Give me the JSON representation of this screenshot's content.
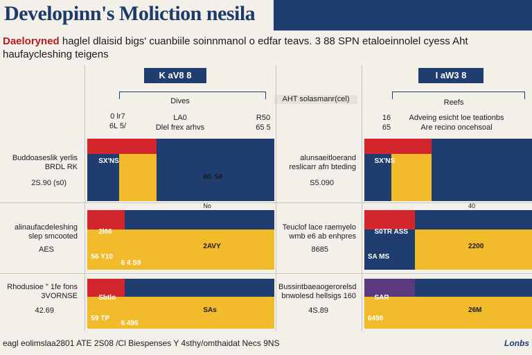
{
  "header": {
    "title": "Developinn's Moliction nesila",
    "subtitle_prefix": "Daeloryned",
    "subtitle": "haglel dlaisid bigs' cuanbiile soinnmanol o edfar teavs. 3 88 SPN etaloeinnolel cyess Aht",
    "subtitle_line2": "haufaycleshing teigens"
  },
  "footer": {
    "source": "eagl eolimslaa2801 ATE 2S08 /Cl Biespenses  Y 4sthy/omthaidat  Necs 9NS",
    "logo": "Lonbs"
  },
  "colors": {
    "navy": "#1f3d6e",
    "yellow": "#f2bb2c",
    "red": "#d2262c",
    "purple": "#5a3a7c",
    "background": "#f3efe9"
  },
  "chart_data": {
    "type": "bar",
    "stacked": true,
    "orientation": "horizontal",
    "title": "Developinn's Moliction nesila",
    "panels": [
      {
        "name": "left",
        "header": "K aV8 8",
        "group_label": "Dives",
        "col_left_top": "0 lr7",
        "col_left_bottom": "6L 5/",
        "col_mid_top": "LA0",
        "col_mid_bottom": "Dlel frex arhvs",
        "col_right_top": "R50",
        "col_right_bottom": "65 5",
        "note": "AHT solasmanr(cel)",
        "rows": [
          {
            "label": "Buddoaseslik yerlis BRDL RK",
            "value_label": "2S.90 (s0)",
            "segments": [
              {
                "color": "navy",
                "value": 17
              },
              {
                "color": "yellow",
                "value": 20
              },
              {
                "color": "navy",
                "value": 63
              }
            ],
            "top_segments": [
              {
                "color": "red",
                "value": 17
              },
              {
                "color": "red",
                "value": 20
              },
              {
                "color": "navy",
                "value": 63
              }
            ],
            "seg_text": [
              "SX'NS",
              "60. 58"
            ],
            "axis_tick": "No"
          },
          {
            "label": "alinaufacdeleshing slep smcooted",
            "value_label": "AES",
            "segments": [
              {
                "color": "red",
                "value": 20
              },
              {
                "color": "navy",
                "value": 80
              }
            ],
            "lower_segments": [
              {
                "color": "yellow",
                "value": 44
              },
              {
                "color": "yellow",
                "value": 56
              }
            ],
            "seg_text": [
              "2l66",
              "2AVY",
              "56 Y10",
              "6 4 S9"
            ]
          },
          {
            "label": "Rhodusioe \" 1fe fons 3VORNSE",
            "value_label": "42.69",
            "segments": [
              {
                "color": "red",
                "value": 20
              },
              {
                "color": "navy",
                "value": 80
              }
            ],
            "lower_segments": [
              {
                "color": "yellow",
                "value": 44
              },
              {
                "color": "yellow",
                "value": 56
              }
            ],
            "seg_text": [
              "Sbtlo",
              "SAs",
              "59 TP",
              "6 495"
            ]
          }
        ]
      },
      {
        "name": "right",
        "header": "I aW3 8",
        "group_label": "Reefs",
        "col_mid_top": "Adveing esicht loe teationbs",
        "col_mid_bottom": "Are recino oncehsoal",
        "col_right_top": "16",
        "col_right_bottom": "65",
        "rows": [
          {
            "label": "alunsaeitloerand reslicarr afn bteding",
            "value_label": "S5.090",
            "segments": [
              {
                "color": "navy",
                "value": 16
              },
              {
                "color": "yellow",
                "value": 24
              },
              {
                "color": "navy",
                "value": 60
              }
            ],
            "top_segments": [
              {
                "color": "red",
                "value": 16
              },
              {
                "color": "red",
                "value": 24
              },
              {
                "color": "navy",
                "value": 60
              }
            ],
            "seg_text": [
              "SX'NS"
            ],
            "axis_tick": "40"
          },
          {
            "label": "Teuclof lace raemyelo wmb e6 ab enhpres",
            "value_label": "8685",
            "segments": [
              {
                "color": "red",
                "value": 30
              },
              {
                "color": "navy",
                "value": 70
              }
            ],
            "lower_segments": [
              {
                "color": "navy",
                "value": 30
              },
              {
                "color": "yellow",
                "value": 70
              }
            ],
            "seg_text": [
              "S0TR ASS",
              "2200",
              "SA MS"
            ]
          },
          {
            "label": "Bussintbaeaogerorelsd bnwolesd hellsigs 160",
            "value_label": "4S.89",
            "segments": [
              {
                "color": "purple",
                "value": 30
              },
              {
                "color": "navy",
                "value": 70
              }
            ],
            "lower_segments": [
              {
                "color": "yellow",
                "value": 100
              }
            ],
            "seg_text": [
              "SAR",
              "26M",
              "6498"
            ]
          }
        ]
      }
    ]
  }
}
